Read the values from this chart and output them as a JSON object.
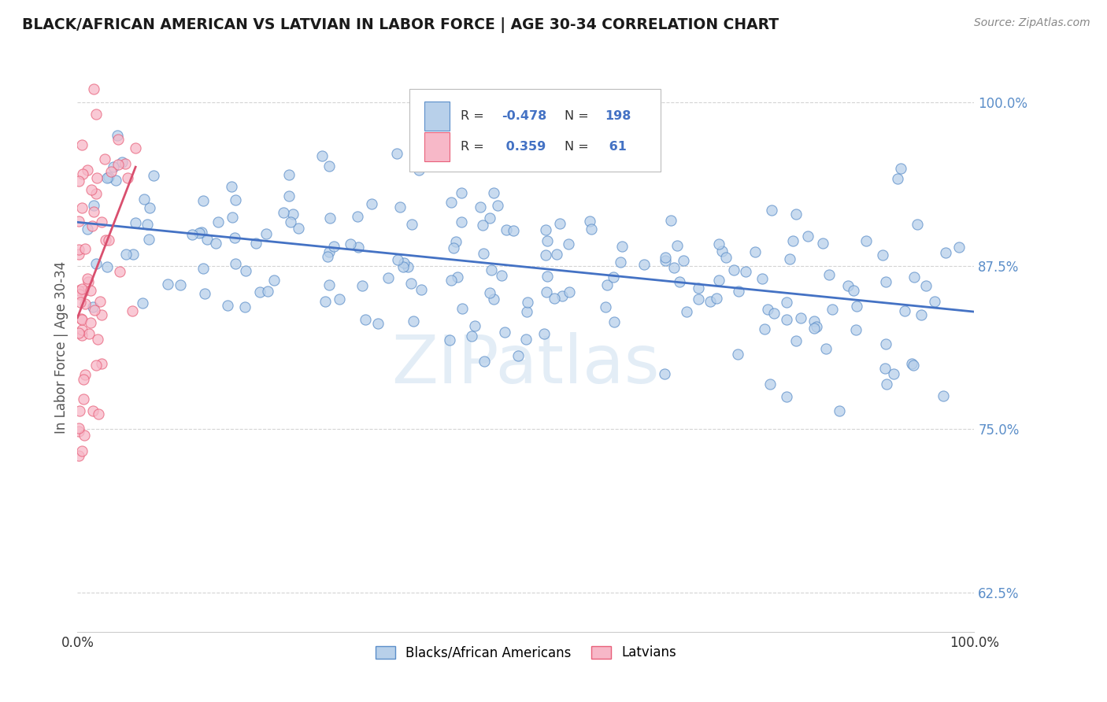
{
  "title": "BLACK/AFRICAN AMERICAN VS LATVIAN IN LABOR FORCE | AGE 30-34 CORRELATION CHART",
  "source_text": "Source: ZipAtlas.com",
  "ylabel": "In Labor Force | Age 30-34",
  "xlim": [
    0.0,
    1.0
  ],
  "ylim": [
    0.595,
    1.03
  ],
  "xtick_labels": [
    "0.0%",
    "100.0%"
  ],
  "ytick_labels": [
    "62.5%",
    "75.0%",
    "87.5%",
    "100.0%"
  ],
  "ytick_positions": [
    0.625,
    0.75,
    0.875,
    1.0
  ],
  "blue_R": -0.478,
  "blue_N": 198,
  "pink_R": 0.359,
  "pink_N": 61,
  "blue_color": "#b8d0ea",
  "pink_color": "#f7b8c8",
  "blue_edge_color": "#5b8ec9",
  "pink_edge_color": "#e8607a",
  "blue_line_color": "#4472c4",
  "pink_line_color": "#d94f6e",
  "legend_blue_label": "Blacks/African Americans",
  "legend_pink_label": "Latvians",
  "watermark_color": "#cddff0",
  "background_color": "#ffffff",
  "grid_color": "#d0d0d0",
  "ytick_color": "#5b8ec9",
  "xtick_color": "#333333"
}
